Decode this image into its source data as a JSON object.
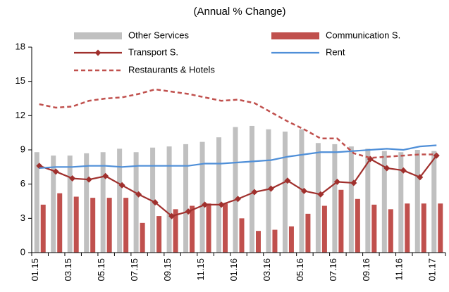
{
  "chart_data": {
    "type": "bar",
    "title": "(Annual % Change)",
    "categories": [
      "01.15",
      null,
      "03.15",
      null,
      "05.15",
      null,
      "07.15",
      null,
      "09.15",
      null,
      "11.15",
      null,
      "01.16",
      null,
      "03.16",
      null,
      "05.16",
      null,
      "07.16",
      null,
      "09.16",
      null,
      "11.16",
      null,
      "01.17"
    ],
    "series": [
      {
        "name": "Other Services",
        "color": "#c0c0c0",
        "mark": "bar",
        "values": [
          8.8,
          8.5,
          8.5,
          8.7,
          8.8,
          9.1,
          8.8,
          9.2,
          9.3,
          9.5,
          9.7,
          10.1,
          11.0,
          11.1,
          10.8,
          10.6,
          10.8,
          9.6,
          9.5,
          9.3,
          9.1,
          8.9,
          8.8,
          9.0,
          8.9
        ]
      },
      {
        "name": "Communication S.",
        "color": "#c0504d",
        "mark": "bar",
        "values": [
          4.2,
          5.2,
          4.9,
          4.8,
          4.8,
          4.8,
          2.6,
          3.2,
          3.8,
          4.1,
          4.3,
          4.3,
          3.0,
          1.9,
          2.0,
          2.3,
          3.4,
          4.1,
          5.5,
          4.7,
          4.2,
          3.8,
          4.3,
          4.3,
          4.3
        ]
      },
      {
        "name": "Transport S.",
        "color": "#a0302d",
        "mark": "line",
        "marker": "diamond",
        "values": [
          7.6,
          7.1,
          6.5,
          6.4,
          6.7,
          5.9,
          5.1,
          4.4,
          3.2,
          3.6,
          4.2,
          4.2,
          4.7,
          5.3,
          5.6,
          6.3,
          5.4,
          5.1,
          6.2,
          6.1,
          8.2,
          7.4,
          7.2,
          6.6,
          8.5
        ]
      },
      {
        "name": "Rent",
        "color": "#4f8fd8",
        "mark": "line",
        "values": [
          7.4,
          7.5,
          7.5,
          7.6,
          7.6,
          7.5,
          7.6,
          7.6,
          7.6,
          7.6,
          7.8,
          7.8,
          7.9,
          8.0,
          8.1,
          8.4,
          8.6,
          8.8,
          8.8,
          8.9,
          9.0,
          9.1,
          9.0,
          9.3,
          9.4
        ]
      },
      {
        "name": "Restaurants & Hotels",
        "color": "#c0504d",
        "mark": "line",
        "dash": true,
        "values": [
          13.0,
          12.7,
          12.8,
          13.3,
          13.5,
          13.6,
          13.9,
          14.3,
          14.1,
          13.9,
          13.6,
          13.3,
          13.4,
          13.1,
          12.3,
          11.5,
          10.8,
          10.0,
          10.0,
          8.7,
          8.3,
          8.4,
          8.5,
          8.6,
          8.6
        ]
      }
    ],
    "ylim": [
      0,
      18
    ],
    "yticks": [
      0,
      3,
      6,
      9,
      12,
      15,
      18
    ]
  }
}
